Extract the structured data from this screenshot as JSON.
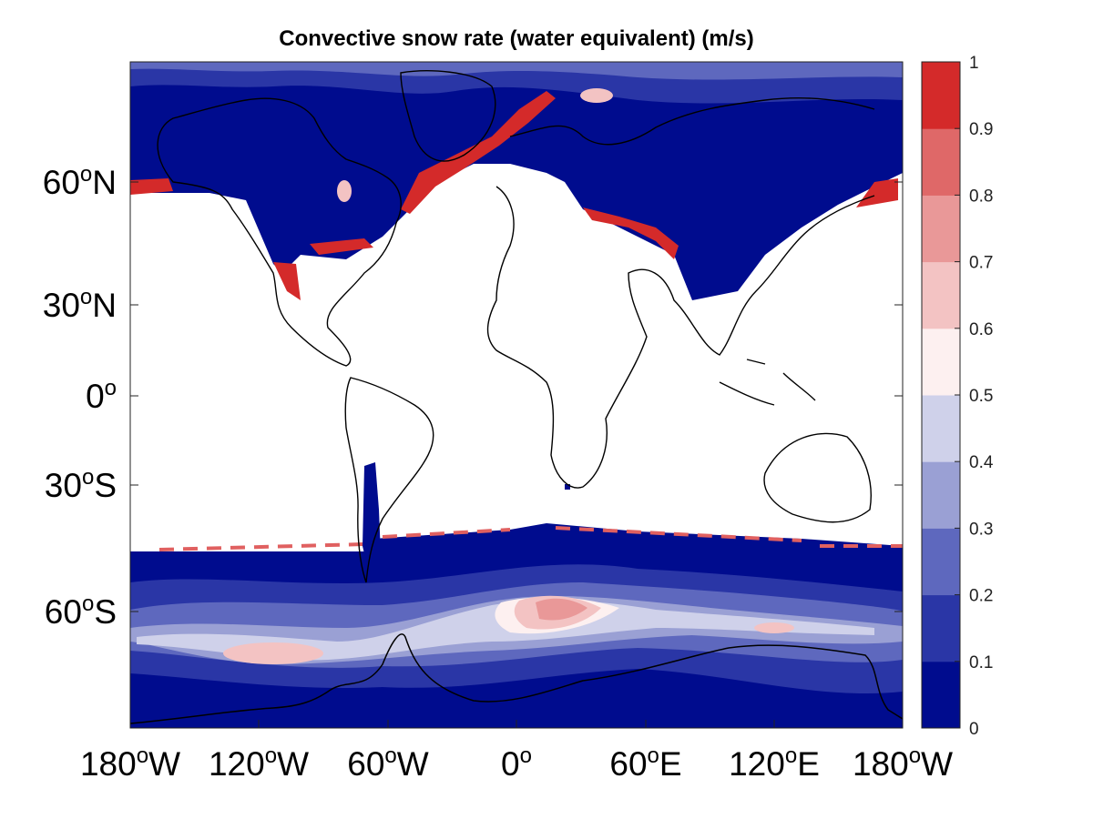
{
  "title": "Convective snow rate (water equivalent) (m/s)",
  "lat_ticks": [
    {
      "deg": "60",
      "suffix": "N"
    },
    {
      "deg": "30",
      "suffix": "N"
    },
    {
      "deg": "0",
      "suffix": ""
    },
    {
      "deg": "30",
      "suffix": "S"
    },
    {
      "deg": "60",
      "suffix": "S"
    }
  ],
  "lon_ticks": [
    {
      "deg": "180",
      "suffix": "W"
    },
    {
      "deg": "120",
      "suffix": "W"
    },
    {
      "deg": "60",
      "suffix": "W"
    },
    {
      "deg": "0",
      "suffix": ""
    },
    {
      "deg": "60",
      "suffix": "E"
    },
    {
      "deg": "120",
      "suffix": "E"
    },
    {
      "deg": "180",
      "suffix": "W"
    }
  ],
  "colorbar": {
    "labels": [
      "1",
      "0.9",
      "0.8",
      "0.7",
      "0.6",
      "0.5",
      "0.4",
      "0.3",
      "0.2",
      "0.1",
      "0"
    ],
    "colors_low_to_high": [
      "#000c8e",
      "#2a36a6",
      "#5e68be",
      "#9aa0d4",
      "#cfd1ea",
      "#fdf0f0",
      "#f3c3c3",
      "#e99898",
      "#df6868",
      "#d42a2a"
    ]
  },
  "map": {
    "ocean_color": "#ffffff",
    "coast_color": "#000000"
  }
}
